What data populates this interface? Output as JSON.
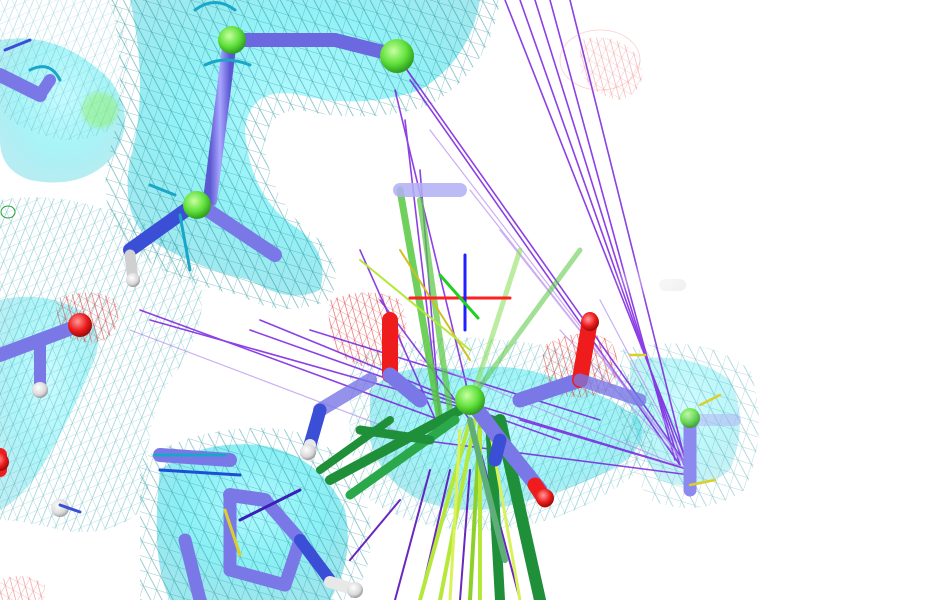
{
  "viewer": {
    "background": "#ffffff",
    "palette": {
      "density_surface": "#3ee6ee",
      "density_mesh": "#1f8f98",
      "red_mesh": "#e03030",
      "carbon_slate": "#7a78e6",
      "carbon_green": "#36c23a",
      "nitrogen_blue": "#3a4fd6",
      "oxygen_red": "#ee1c1c",
      "hydrogen_white": "#e8e8e8",
      "interaction_purple": "#7a1fe0",
      "ligand_green": "#56c840",
      "ligand_lime": "#b5e83a",
      "ligand_dark_green": "#1f8f3a",
      "axis_red": "#ff2020",
      "axis_green": "#20d020",
      "axis_blue": "#2020ff",
      "atom_green_sphere": "#60e040"
    }
  }
}
